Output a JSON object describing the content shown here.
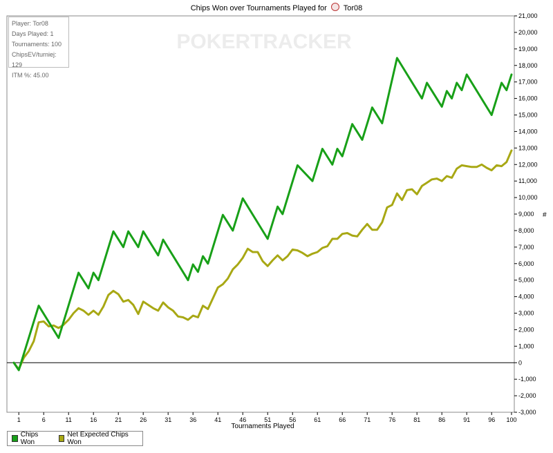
{
  "title": {
    "prefix": "Chips Won over Tournaments Played for",
    "player": "Tor08"
  },
  "info_box": {
    "player": "Player: Tor08",
    "days_played": "Days Played: 1",
    "tournaments": "Tournaments: 100",
    "chips_ev": "ChipsEV/turniej: 129",
    "itm": "ITM %: 45.00"
  },
  "watermark": "POKERTRACKER",
  "legend": {
    "chips_won": "Chips Won",
    "net_expected": "Net Expected Chips Won"
  },
  "colors": {
    "chips_won": "#18a018",
    "net_expected": "#a8a814",
    "zero_line": "#000000",
    "background": "#ffffff"
  },
  "chart_data": {
    "type": "line",
    "title": "Chips Won over Tournaments Played for Tor08",
    "xlabel": "Tournaments Played",
    "ylabel": "#",
    "xlim": [
      0,
      100
    ],
    "ylim": [
      -3000,
      21000
    ],
    "x_ticks": [
      1,
      6,
      11,
      16,
      21,
      26,
      31,
      36,
      41,
      46,
      51,
      56,
      61,
      66,
      71,
      76,
      81,
      86,
      91,
      96,
      100
    ],
    "y_ticks": [
      -3000,
      -2000,
      -1000,
      0,
      1000,
      2000,
      3000,
      4000,
      5000,
      6000,
      7000,
      8000,
      9000,
      10000,
      11000,
      12000,
      13000,
      14000,
      15000,
      16000,
      17000,
      18000,
      19000,
      20000,
      21000
    ],
    "y_tick_labels": [
      "-3,000",
      "-2,000",
      "-1,000",
      "0",
      "1,000",
      "2,000",
      "3,000",
      "4,000",
      "5,000",
      "6,000",
      "7,000",
      "8,000",
      "9,000",
      "10,000",
      "11,000",
      "12,000",
      "13,000",
      "14,000",
      "15,000",
      "16,000",
      "17,000",
      "18,000",
      "19,000",
      "20,000",
      "21,000"
    ],
    "legend_position": "bottom-left",
    "series": [
      {
        "name": "Chips Won",
        "points": [
          [
            0,
            0
          ],
          [
            1,
            -450
          ],
          [
            5,
            3450
          ],
          [
            9,
            1500
          ],
          [
            13,
            5450
          ],
          [
            15,
            4500
          ],
          [
            16,
            5450
          ],
          [
            17,
            5000
          ],
          [
            20,
            7950
          ],
          [
            22,
            7000
          ],
          [
            23,
            7950
          ],
          [
            25,
            7000
          ],
          [
            26,
            7950
          ],
          [
            29,
            6500
          ],
          [
            30,
            7450
          ],
          [
            35,
            5000
          ],
          [
            36,
            5950
          ],
          [
            37,
            5500
          ],
          [
            38,
            6450
          ],
          [
            39,
            6000
          ],
          [
            42,
            8950
          ],
          [
            44,
            8000
          ],
          [
            46,
            9950
          ],
          [
            51,
            7500
          ],
          [
            53,
            9450
          ],
          [
            54,
            9000
          ],
          [
            57,
            11950
          ],
          [
            60,
            11000
          ],
          [
            62,
            12950
          ],
          [
            64,
            12000
          ],
          [
            65,
            12950
          ],
          [
            66,
            12500
          ],
          [
            68,
            14450
          ],
          [
            70,
            13500
          ],
          [
            72,
            15450
          ],
          [
            74,
            14500
          ],
          [
            77,
            18450
          ],
          [
            82,
            16000
          ],
          [
            83,
            16950
          ],
          [
            86,
            15500
          ],
          [
            87,
            16450
          ],
          [
            88,
            16000
          ],
          [
            89,
            16950
          ],
          [
            90,
            16500
          ],
          [
            91,
            17450
          ],
          [
            96,
            15000
          ],
          [
            98,
            16950
          ],
          [
            99,
            16500
          ],
          [
            100,
            17450
          ]
        ]
      },
      {
        "name": "Net Expected Chips Won",
        "points": [
          [
            0,
            0
          ],
          [
            1,
            -400
          ],
          [
            2,
            300
          ],
          [
            3,
            700
          ],
          [
            4,
            1300
          ],
          [
            5,
            2450
          ],
          [
            6,
            2500
          ],
          [
            7,
            2200
          ],
          [
            8,
            2250
          ],
          [
            9,
            2100
          ],
          [
            10,
            2300
          ],
          [
            11,
            2600
          ],
          [
            12,
            3000
          ],
          [
            13,
            3300
          ],
          [
            14,
            3150
          ],
          [
            15,
            2900
          ],
          [
            16,
            3150
          ],
          [
            17,
            2900
          ],
          [
            18,
            3400
          ],
          [
            19,
            4100
          ],
          [
            20,
            4350
          ],
          [
            21,
            4150
          ],
          [
            22,
            3700
          ],
          [
            23,
            3800
          ],
          [
            24,
            3500
          ],
          [
            25,
            2950
          ],
          [
            26,
            3700
          ],
          [
            27,
            3500
          ],
          [
            28,
            3300
          ],
          [
            29,
            3150
          ],
          [
            30,
            3650
          ],
          [
            31,
            3350
          ],
          [
            32,
            3150
          ],
          [
            33,
            2800
          ],
          [
            34,
            2750
          ],
          [
            35,
            2600
          ],
          [
            36,
            2850
          ],
          [
            37,
            2750
          ],
          [
            38,
            3450
          ],
          [
            39,
            3250
          ],
          [
            40,
            3900
          ],
          [
            41,
            4550
          ],
          [
            42,
            4750
          ],
          [
            43,
            5100
          ],
          [
            44,
            5650
          ],
          [
            45,
            5950
          ],
          [
            46,
            6350
          ],
          [
            47,
            6900
          ],
          [
            48,
            6700
          ],
          [
            49,
            6700
          ],
          [
            50,
            6150
          ],
          [
            51,
            5850
          ],
          [
            52,
            6200
          ],
          [
            53,
            6500
          ],
          [
            54,
            6200
          ],
          [
            55,
            6450
          ],
          [
            56,
            6850
          ],
          [
            57,
            6800
          ],
          [
            58,
            6650
          ],
          [
            59,
            6450
          ],
          [
            60,
            6600
          ],
          [
            61,
            6700
          ],
          [
            62,
            6950
          ],
          [
            63,
            7050
          ],
          [
            64,
            7500
          ],
          [
            65,
            7500
          ],
          [
            66,
            7800
          ],
          [
            67,
            7850
          ],
          [
            68,
            7700
          ],
          [
            69,
            7650
          ],
          [
            70,
            8050
          ],
          [
            71,
            8400
          ],
          [
            72,
            8050
          ],
          [
            73,
            8050
          ],
          [
            74,
            8500
          ],
          [
            75,
            9400
          ],
          [
            76,
            9550
          ],
          [
            77,
            10250
          ],
          [
            78,
            9850
          ],
          [
            79,
            10450
          ],
          [
            80,
            10500
          ],
          [
            81,
            10200
          ],
          [
            82,
            10700
          ],
          [
            83,
            10900
          ],
          [
            84,
            11100
          ],
          [
            85,
            11150
          ],
          [
            86,
            11000
          ],
          [
            87,
            11300
          ],
          [
            88,
            11200
          ],
          [
            89,
            11750
          ],
          [
            90,
            11950
          ],
          [
            91,
            11900
          ],
          [
            92,
            11850
          ],
          [
            93,
            11850
          ],
          [
            94,
            12000
          ],
          [
            95,
            11800
          ],
          [
            96,
            11650
          ],
          [
            97,
            11950
          ],
          [
            98,
            11900
          ],
          [
            99,
            12150
          ],
          [
            100,
            12850
          ]
        ]
      }
    ]
  }
}
